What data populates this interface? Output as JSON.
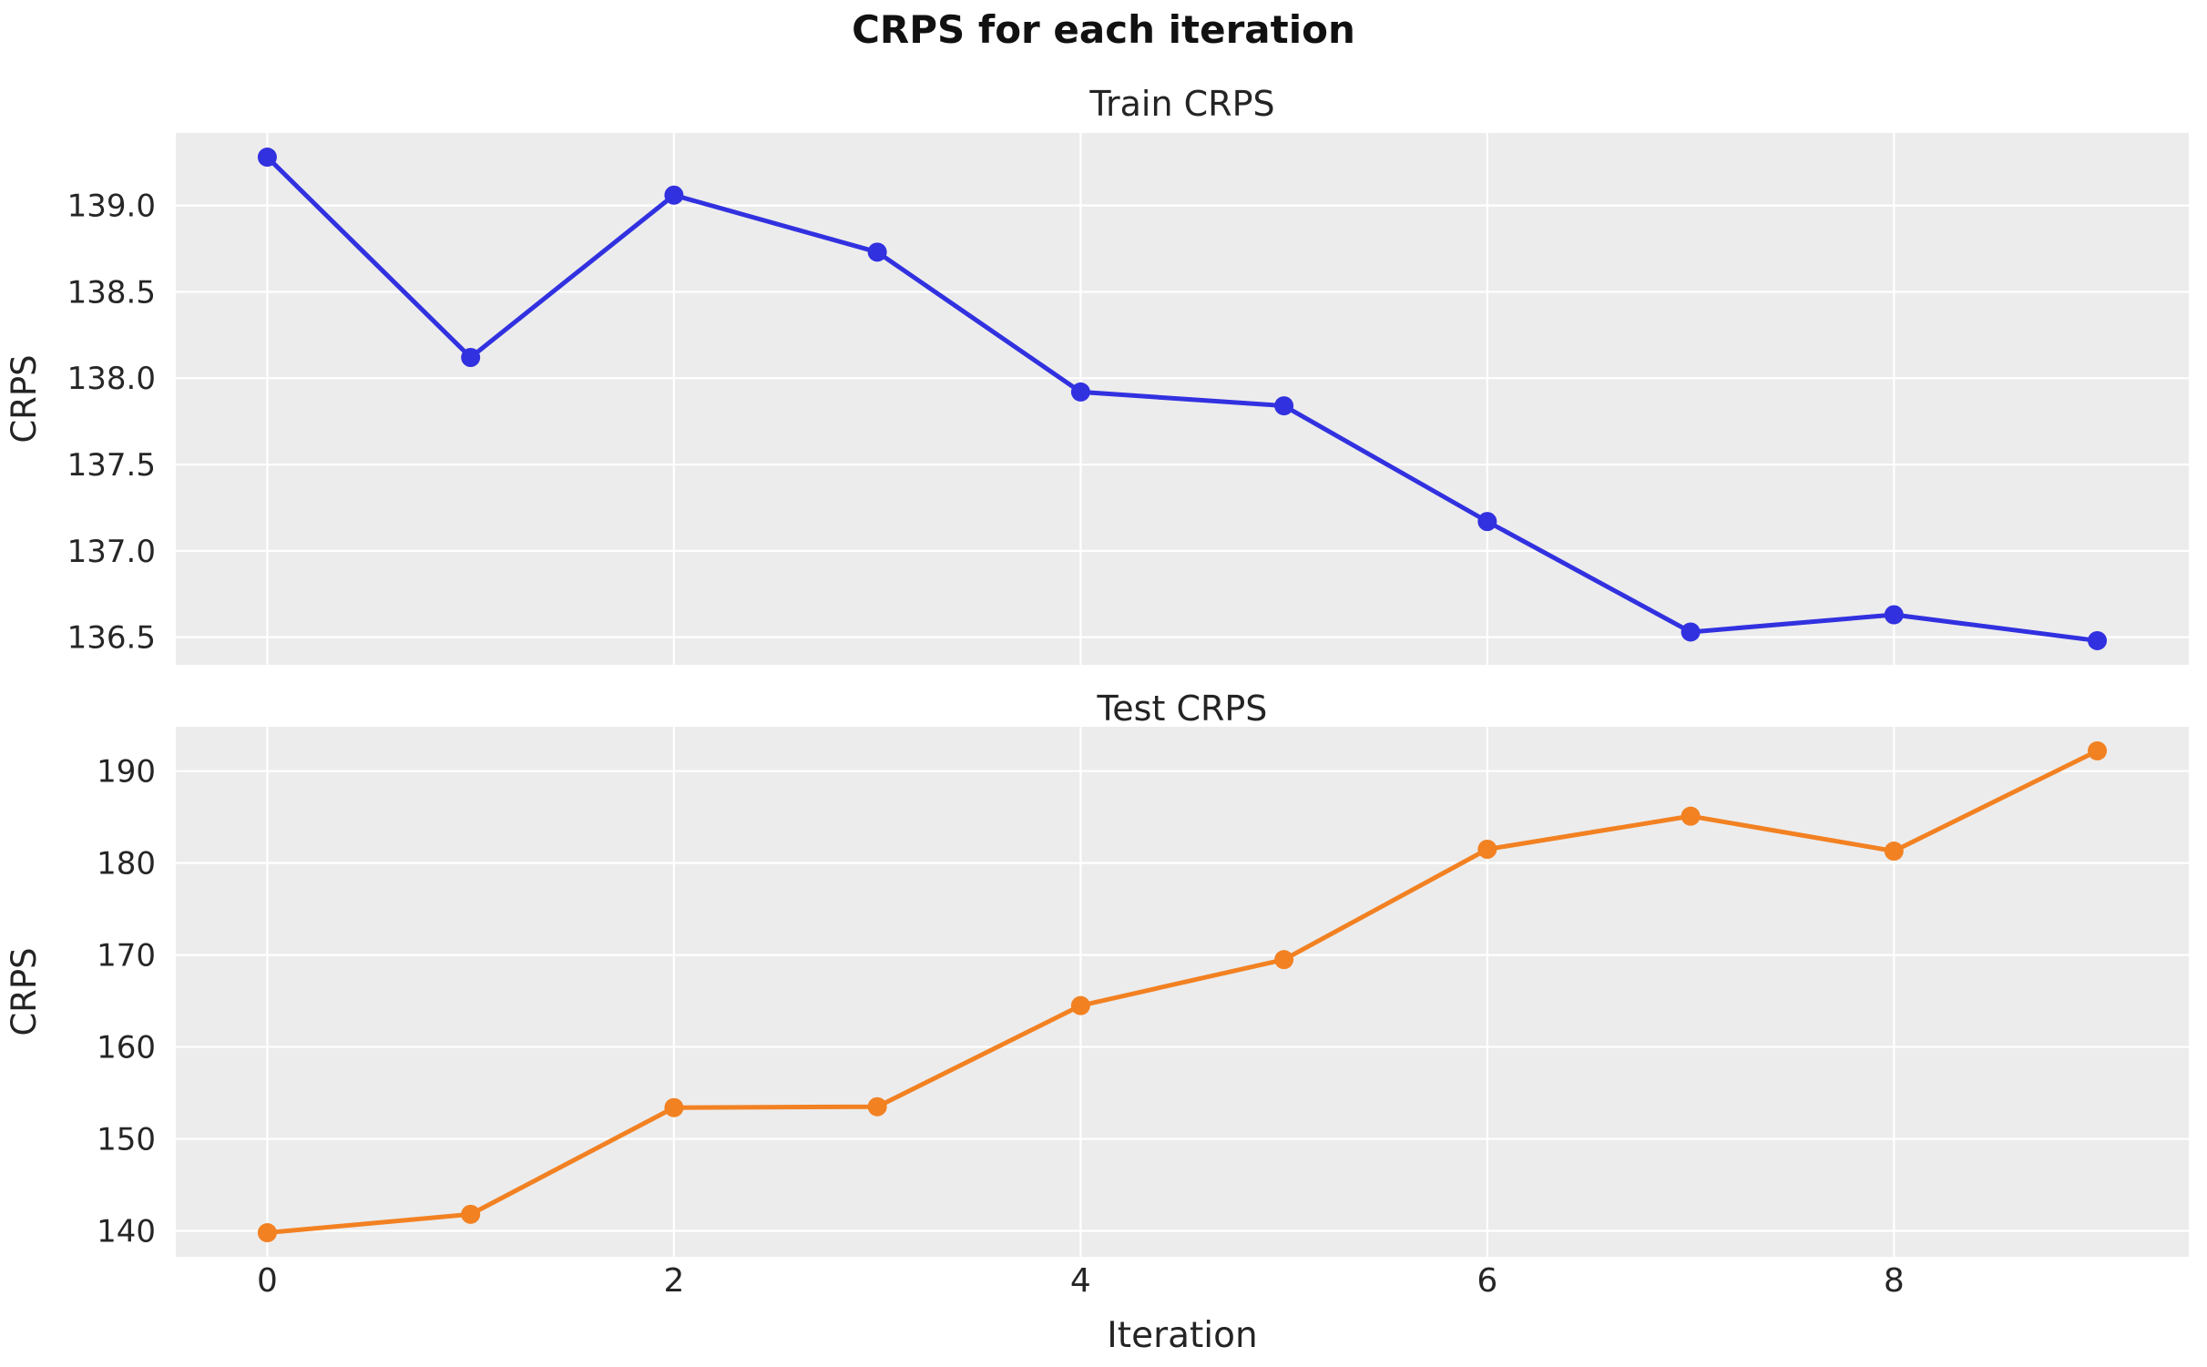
{
  "suptitle": "CRPS for each iteration",
  "xlabel": "Iteration",
  "styles": {
    "plot_background": "#ececec",
    "gridline_color": "#ffffff",
    "tick_label_color": "#262626",
    "train_color": "#3231e0",
    "test_color": "#f28122"
  },
  "chart_data": [
    {
      "type": "line",
      "title": "Train CRPS",
      "ylabel": "CRPS",
      "series_name": "train",
      "x": [
        0,
        1,
        2,
        3,
        4,
        5,
        6,
        7,
        8,
        9
      ],
      "y": [
        139.28,
        138.12,
        139.06,
        138.73,
        137.92,
        137.84,
        137.17,
        136.53,
        136.63,
        136.48
      ],
      "color": "#3231e0",
      "marker": "circle",
      "grid": true,
      "xlim": [
        -0.45,
        9.45
      ],
      "ylim": [
        136.34,
        139.42
      ],
      "xticks": [
        0,
        2,
        4,
        6,
        8
      ],
      "xtick_labels": [],
      "yticks": [
        136.5,
        137.0,
        137.5,
        138.0,
        138.5,
        139.0
      ],
      "ytick_labels": [
        "136.5",
        "137.0",
        "137.5",
        "138.0",
        "138.5",
        "139.0"
      ]
    },
    {
      "type": "line",
      "title": "Test CRPS",
      "ylabel": "CRPS",
      "series_name": "test",
      "x": [
        0,
        1,
        2,
        3,
        4,
        5,
        6,
        7,
        8,
        9
      ],
      "y": [
        139.8,
        141.8,
        153.4,
        153.5,
        164.5,
        169.5,
        181.5,
        185.1,
        181.3,
        192.2
      ],
      "color": "#f28122",
      "marker": "circle",
      "grid": true,
      "xlim": [
        -0.45,
        9.45
      ],
      "ylim": [
        137.18,
        194.82
      ],
      "xticks": [
        0,
        2,
        4,
        6,
        8
      ],
      "xtick_labels": [
        "0",
        "2",
        "4",
        "6",
        "8"
      ],
      "yticks": [
        140,
        150,
        160,
        170,
        180,
        190
      ],
      "ytick_labels": [
        "140",
        "150",
        "160",
        "170",
        "180",
        "190"
      ]
    }
  ]
}
